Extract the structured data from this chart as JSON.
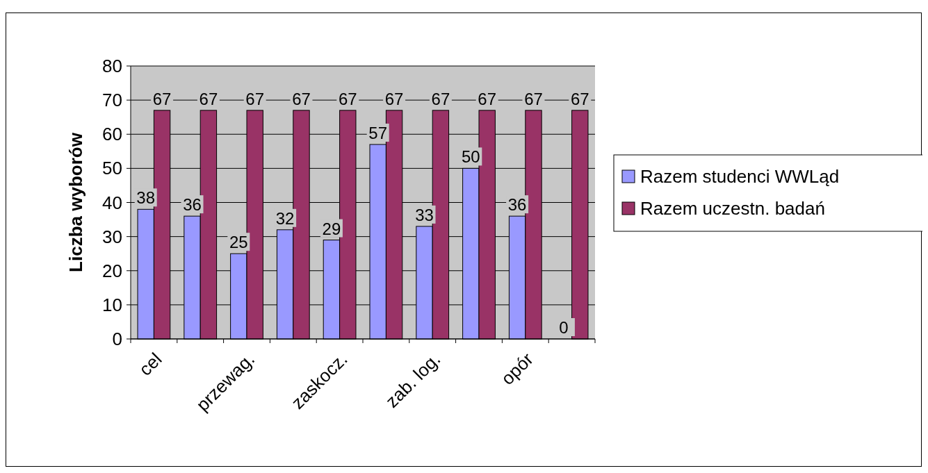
{
  "chart_data": {
    "type": "bar",
    "ylabel": "Liczba wyborów",
    "categories": [
      "cel",
      null,
      "przewag.",
      null,
      "zaskocz.",
      null,
      "zab. log.",
      null,
      "opór",
      null
    ],
    "series": [
      {
        "name": "Razem  studenci WWLąd",
        "color": "#9999ff",
        "values": [
          38,
          36,
          25,
          32,
          29,
          57,
          33,
          50,
          36,
          0
        ]
      },
      {
        "name": "Razem uczestn. badań",
        "color": "#993366",
        "values": [
          67,
          67,
          67,
          67,
          67,
          67,
          67,
          67,
          67,
          67
        ]
      }
    ],
    "ylim": [
      0,
      80
    ],
    "yticks": [
      0,
      10,
      20,
      30,
      40,
      50,
      60,
      70,
      80
    ],
    "grid": "y",
    "legend": "right",
    "data_labels": true
  }
}
